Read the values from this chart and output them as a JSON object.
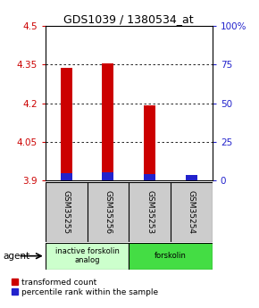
{
  "title": "GDS1039 / 1380534_at",
  "samples": [
    "GSM35255",
    "GSM35256",
    "GSM35253",
    "GSM35254"
  ],
  "transformed_counts": [
    4.338,
    4.355,
    4.19,
    3.912
  ],
  "percentile_ranks_pct": [
    4.5,
    5.0,
    4.0,
    3.5
  ],
  "ylim": [
    3.9,
    4.5
  ],
  "yticks": [
    3.9,
    4.05,
    4.2,
    4.35,
    4.5
  ],
  "y2lim": [
    0,
    100
  ],
  "y2ticks": [
    0,
    25,
    50,
    75,
    100
  ],
  "y2ticklabels": [
    "0",
    "25",
    "50",
    "75",
    "100%"
  ],
  "bar_width": 0.28,
  "red_color": "#cc0000",
  "blue_color": "#2222cc",
  "agent_groups": [
    {
      "label": "inactive forskolin\nanalog",
      "samples_n": 2,
      "color": "#ccffcc"
    },
    {
      "label": "forskolin",
      "samples_n": 2,
      "color": "#44dd44"
    }
  ],
  "sample_box_color": "#cccccc",
  "legend_red_label": "transformed count",
  "legend_blue_label": "percentile rank within the sample",
  "agent_label": "agent",
  "baseline": 3.9
}
